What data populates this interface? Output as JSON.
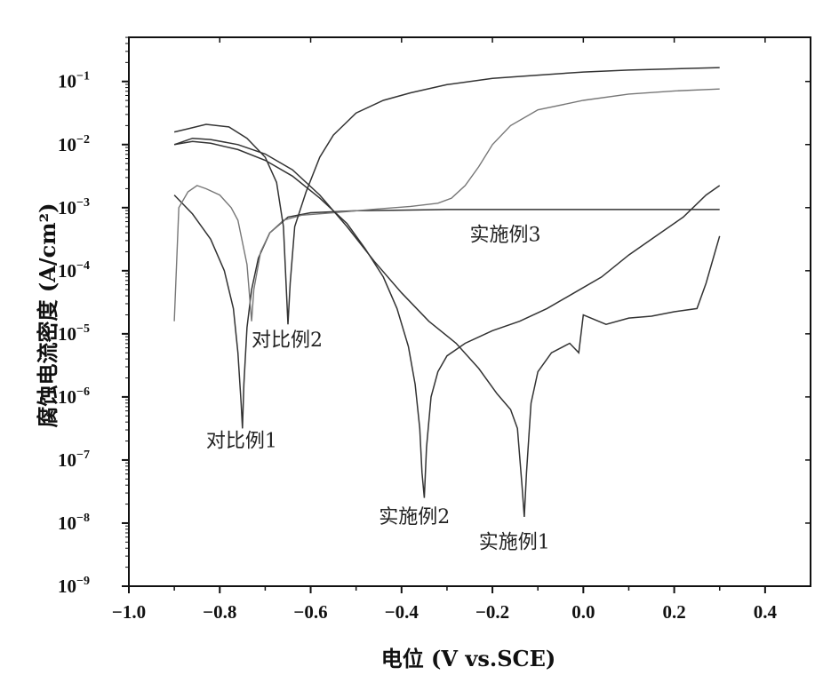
{
  "chart_data": {
    "type": "line",
    "xlabel": "电位 (V vs.SCE)",
    "ylabel": "腐蚀电流密度 (A/cm²)",
    "xlim": [
      -1.0,
      0.5
    ],
    "ylim_log10": [
      -9,
      -0.3
    ],
    "y_scale": "log",
    "x_ticks": [
      {
        "value": -1.0,
        "label": "−1.0"
      },
      {
        "value": -0.8,
        "label": "−0.8"
      },
      {
        "value": -0.6,
        "label": "−0.6"
      },
      {
        "value": -0.4,
        "label": "−0.4"
      },
      {
        "value": -0.2,
        "label": "−0.2"
      },
      {
        "value": 0.0,
        "label": "0.0"
      },
      {
        "value": 0.2,
        "label": "0.2"
      },
      {
        "value": 0.4,
        "label": "0.4"
      }
    ],
    "y_ticks": [
      {
        "exp": -1,
        "base": "10",
        "sup": "−1"
      },
      {
        "exp": -2,
        "base": "10",
        "sup": "−2"
      },
      {
        "exp": -3,
        "base": "10",
        "sup": "−3"
      },
      {
        "exp": -4,
        "base": "10",
        "sup": "−4"
      },
      {
        "exp": -5,
        "base": "10",
        "sup": "−5"
      },
      {
        "exp": -6,
        "base": "10",
        "sup": "−6"
      },
      {
        "exp": -7,
        "base": "10",
        "sup": "−7"
      },
      {
        "exp": -8,
        "base": "10",
        "sup": "−8"
      },
      {
        "exp": -9,
        "base": "10",
        "sup": "−9"
      }
    ],
    "grid": false,
    "legend": "none",
    "series": [
      {
        "label": "对比例1",
        "label_at": {
          "x": -0.83,
          "log10y": -6.8
        },
        "points": [
          [
            -0.9,
            -2.8
          ],
          [
            -0.86,
            -3.1
          ],
          [
            -0.82,
            -3.5
          ],
          [
            -0.79,
            -4.0
          ],
          [
            -0.77,
            -4.6
          ],
          [
            -0.76,
            -5.3
          ],
          [
            -0.753,
            -6.1
          ],
          [
            -0.75,
            -6.5
          ],
          [
            -0.747,
            -5.8
          ],
          [
            -0.74,
            -4.9
          ],
          [
            -0.73,
            -4.3
          ],
          [
            -0.715,
            -3.8
          ],
          [
            -0.69,
            -3.4
          ],
          [
            -0.65,
            -3.15
          ],
          [
            -0.6,
            -3.08
          ],
          [
            -0.5,
            -3.05
          ],
          [
            -0.4,
            -3.04
          ],
          [
            -0.3,
            -3.03
          ],
          [
            -0.2,
            -3.03
          ],
          [
            -0.1,
            -3.03
          ],
          [
            0.0,
            -3.03
          ],
          [
            0.1,
            -3.03
          ],
          [
            0.2,
            -3.03
          ],
          [
            0.3,
            -3.03
          ]
        ]
      },
      {
        "label": "对比例2",
        "label_at": {
          "x": -0.73,
          "log10y": -5.2
        },
        "points": [
          [
            -0.9,
            -4.8
          ],
          [
            -0.89,
            -3.0
          ],
          [
            -0.87,
            -2.75
          ],
          [
            -0.85,
            -2.65
          ],
          [
            -0.83,
            -2.7
          ],
          [
            -0.8,
            -2.8
          ],
          [
            -0.775,
            -3.0
          ],
          [
            -0.76,
            -3.2
          ],
          [
            -0.74,
            -3.9
          ],
          [
            -0.73,
            -4.8
          ],
          [
            -0.725,
            -4.3
          ],
          [
            -0.71,
            -3.7
          ],
          [
            -0.69,
            -3.4
          ],
          [
            -0.66,
            -3.2
          ],
          [
            -0.62,
            -3.12
          ],
          [
            -0.55,
            -3.08
          ],
          [
            -0.45,
            -3.02
          ],
          [
            -0.38,
            -2.98
          ],
          [
            -0.32,
            -2.93
          ],
          [
            -0.29,
            -2.85
          ],
          [
            -0.26,
            -2.65
          ],
          [
            -0.23,
            -2.35
          ],
          [
            -0.2,
            -2.0
          ],
          [
            -0.16,
            -1.7
          ],
          [
            -0.1,
            -1.45
          ],
          [
            0.0,
            -1.3
          ],
          [
            0.1,
            -1.2
          ],
          [
            0.2,
            -1.15
          ],
          [
            0.3,
            -1.12
          ]
        ]
      },
      {
        "label": "实施例3",
        "label_at": {
          "x": -0.25,
          "log10y": -3.53
        },
        "points": [
          [
            -0.9,
            -1.8
          ],
          [
            -0.87,
            -1.75
          ],
          [
            -0.83,
            -1.68
          ],
          [
            -0.78,
            -1.72
          ],
          [
            -0.74,
            -1.9
          ],
          [
            -0.7,
            -2.2
          ],
          [
            -0.675,
            -2.6
          ],
          [
            -0.66,
            -3.3
          ],
          [
            -0.65,
            -4.85
          ],
          [
            -0.645,
            -4.2
          ],
          [
            -0.635,
            -3.3
          ],
          [
            -0.61,
            -2.75
          ],
          [
            -0.58,
            -2.2
          ],
          [
            -0.55,
            -1.85
          ],
          [
            -0.5,
            -1.5
          ],
          [
            -0.44,
            -1.3
          ],
          [
            -0.38,
            -1.18
          ],
          [
            -0.3,
            -1.05
          ],
          [
            -0.2,
            -0.95
          ],
          [
            -0.1,
            -0.9
          ],
          [
            0.0,
            -0.85
          ],
          [
            0.1,
            -0.82
          ],
          [
            0.2,
            -0.8
          ],
          [
            0.3,
            -0.78
          ]
        ]
      },
      {
        "label": "实施例2",
        "label_at": {
          "x": -0.45,
          "log10y": -8.0
        },
        "points": [
          [
            -0.9,
            -2.0
          ],
          [
            -0.86,
            -1.95
          ],
          [
            -0.82,
            -1.98
          ],
          [
            -0.76,
            -2.08
          ],
          [
            -0.7,
            -2.25
          ],
          [
            -0.64,
            -2.5
          ],
          [
            -0.58,
            -2.85
          ],
          [
            -0.52,
            -3.25
          ],
          [
            -0.48,
            -3.65
          ],
          [
            -0.44,
            -4.1
          ],
          [
            -0.41,
            -4.6
          ],
          [
            -0.385,
            -5.2
          ],
          [
            -0.37,
            -5.8
          ],
          [
            -0.36,
            -6.5
          ],
          [
            -0.355,
            -7.2
          ],
          [
            -0.35,
            -7.6
          ],
          [
            -0.345,
            -6.8
          ],
          [
            -0.335,
            -6.0
          ],
          [
            -0.32,
            -5.6
          ],
          [
            -0.3,
            -5.35
          ],
          [
            -0.26,
            -5.15
          ],
          [
            -0.2,
            -4.95
          ],
          [
            -0.14,
            -4.8
          ],
          [
            -0.08,
            -4.6
          ],
          [
            -0.02,
            -4.35
          ],
          [
            0.04,
            -4.1
          ],
          [
            0.1,
            -3.75
          ],
          [
            0.16,
            -3.45
          ],
          [
            0.22,
            -3.15
          ],
          [
            0.27,
            -2.8
          ],
          [
            0.3,
            -2.65
          ]
        ]
      },
      {
        "label": "实施例1",
        "label_at": {
          "x": -0.23,
          "log10y": -8.4
        },
        "points": [
          [
            -0.9,
            -2.0
          ],
          [
            -0.86,
            -1.9
          ],
          [
            -0.82,
            -1.92
          ],
          [
            -0.76,
            -2.0
          ],
          [
            -0.7,
            -2.15
          ],
          [
            -0.64,
            -2.4
          ],
          [
            -0.58,
            -2.8
          ],
          [
            -0.52,
            -3.3
          ],
          [
            -0.46,
            -3.85
          ],
          [
            -0.4,
            -4.35
          ],
          [
            -0.34,
            -4.8
          ],
          [
            -0.28,
            -5.15
          ],
          [
            -0.23,
            -5.55
          ],
          [
            -0.19,
            -5.95
          ],
          [
            -0.16,
            -6.2
          ],
          [
            -0.145,
            -6.5
          ],
          [
            -0.135,
            -7.4
          ],
          [
            -0.13,
            -7.9
          ],
          [
            -0.125,
            -7.2
          ],
          [
            -0.115,
            -6.1
          ],
          [
            -0.1,
            -5.6
          ],
          [
            -0.07,
            -5.3
          ],
          [
            -0.03,
            -5.15
          ],
          [
            -0.01,
            -5.3
          ],
          [
            0.0,
            -4.7
          ],
          [
            0.05,
            -4.85
          ],
          [
            0.1,
            -4.75
          ],
          [
            0.15,
            -4.72
          ],
          [
            0.2,
            -4.65
          ],
          [
            0.25,
            -4.6
          ],
          [
            0.27,
            -4.2
          ],
          [
            0.29,
            -3.7
          ],
          [
            0.3,
            -3.45
          ]
        ]
      }
    ]
  }
}
